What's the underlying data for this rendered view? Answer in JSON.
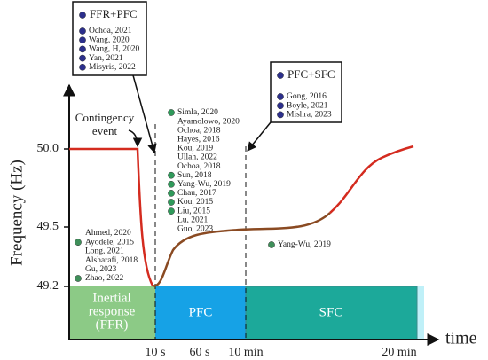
{
  "y_axis": {
    "title": "Frequency (Hz)",
    "ticks": [
      "50.0",
      "49.5",
      "49.2"
    ]
  },
  "x_axis": {
    "title": "time",
    "ticks": [
      "10 s",
      "60 s",
      "10 min",
      "20 min"
    ]
  },
  "contingency": [
    "Contingency",
    "event"
  ],
  "regions": [
    [
      "Inertial",
      "response",
      "(FFR)"
    ],
    [
      "PFC"
    ],
    [
      "SFC"
    ]
  ],
  "boxes": [
    {
      "title": "FFR+PFC",
      "refs": [
        "Ochoa, 2021",
        "Wang, 2020",
        "Wang, H, 2020",
        "Yan, 2021",
        "Misyris, 2022"
      ]
    },
    {
      "title": "PFC+SFC",
      "refs": [
        "Gong, 2016",
        "Boyle, 2021",
        "Mishra, 2023"
      ]
    }
  ],
  "inertial_refs": [
    "Ahmed, 2020",
    "Ayodele, 2015",
    "Long, 2021",
    "Alsharafi, 2018",
    "Gu, 2023",
    "Zhao, 2022"
  ],
  "pfc_refs": [
    "Simla, 2020",
    "Ayamolowo, 2020",
    "Ochoa, 2018",
    "Hayes, 2016",
    "Kou, 2019",
    "Ullah, 2022",
    "Ochoa, 2018",
    "Sun, 2018",
    "Yang-Wu, 2019",
    "Chau, 2017",
    "Kou, 2015",
    "Liu, 2015",
    "Lu, 2021",
    "Guo, 2023"
  ],
  "sfc_refs": [
    "Yang-Wu, 2019"
  ]
}
